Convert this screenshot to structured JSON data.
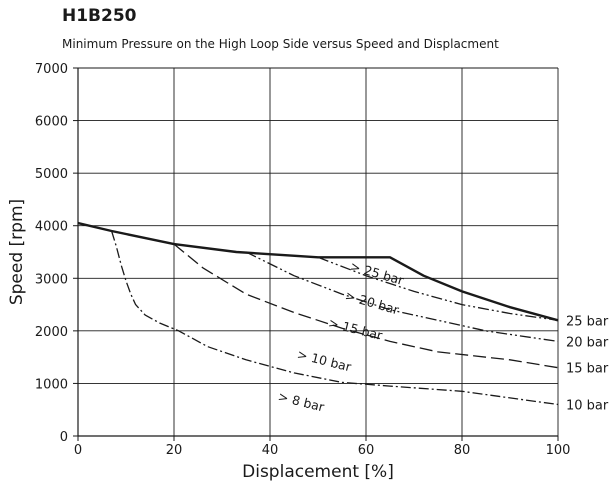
{
  "header": {
    "title": "H1B250",
    "subtitle": "Minimum Pressure on the High Loop Side versus Speed and Displacment"
  },
  "chart_data": {
    "type": "line",
    "title": "H1B250",
    "subtitle": "Minimum Pressure on the High Loop Side versus Speed and Displacment",
    "xlabel": "Displacement [%]",
    "ylabel": "Speed [rpm]",
    "xlim": [
      0,
      100
    ],
    "ylim": [
      0,
      7000
    ],
    "xticks": [
      0,
      20,
      40,
      60,
      80,
      100
    ],
    "yticks": [
      0,
      1000,
      2000,
      3000,
      4000,
      5000,
      6000,
      7000
    ],
    "xtick_labels": [
      "0",
      "20",
      "40",
      "60",
      "80",
      "100"
    ],
    "ytick_labels": [
      "0",
      "1000",
      "2000",
      "3000",
      "4000",
      "5000",
      "6000",
      "7000"
    ],
    "grid": true,
    "colors": {
      "line": "#1a1a1a",
      "grid": "#1a1a1a"
    },
    "series": [
      {
        "style": "solid",
        "x": [
          0,
          7,
          20,
          33,
          50,
          65,
          72,
          80,
          90,
          100
        ],
        "y": [
          4050,
          3900,
          3650,
          3500,
          3400,
          3400,
          3050,
          2750,
          2450,
          2200
        ]
      },
      {
        "name": "> 25 bar",
        "style": "dash-dot-dot",
        "x": [
          50,
          60,
          70,
          80,
          90,
          100
        ],
        "y": [
          3400,
          3050,
          2750,
          2500,
          2330,
          2200
        ],
        "end_label": "25 bar"
      },
      {
        "name": "> 20 bar",
        "style": "dash-dot-dot",
        "x": [
          35,
          45,
          55,
          65,
          75,
          85,
          100
        ],
        "y": [
          3500,
          3050,
          2700,
          2400,
          2200,
          2000,
          1800
        ],
        "end_label": "20 bar"
      },
      {
        "name": "> 15 bar",
        "style": "long-dash",
        "x": [
          20,
          26,
          35,
          45,
          55,
          65,
          75,
          90,
          100
        ],
        "y": [
          3650,
          3200,
          2700,
          2350,
          2050,
          1800,
          1600,
          1450,
          1300
        ],
        "end_label": "15 bar"
      },
      {
        "name": "> 10 bar",
        "style": "dash-dot",
        "x": [
          7,
          8,
          9,
          10,
          11,
          12,
          14,
          17,
          21,
          27,
          35,
          45,
          55,
          65,
          80,
          100
        ],
        "y": [
          3900,
          3600,
          3250,
          2950,
          2700,
          2500,
          2300,
          2150,
          2000,
          1700,
          1450,
          1200,
          1020,
          950,
          850,
          600
        ],
        "end_label": "10 bar"
      }
    ],
    "annotations": [
      {
        "text": "> 25 bar",
        "x": 56.5,
        "y": 3160,
        "rotate": 16
      },
      {
        "text": "> 20 bar",
        "x": 55.5,
        "y": 2600,
        "rotate": 16
      },
      {
        "text": "> 15 bar",
        "x": 52,
        "y": 2080,
        "rotate": 14
      },
      {
        "text": "> 10 bar",
        "x": 45.5,
        "y": 1480,
        "rotate": 14
      },
      {
        "text": "> 8 bar",
        "x": 41.5,
        "y": 680,
        "rotate": 14
      }
    ]
  }
}
